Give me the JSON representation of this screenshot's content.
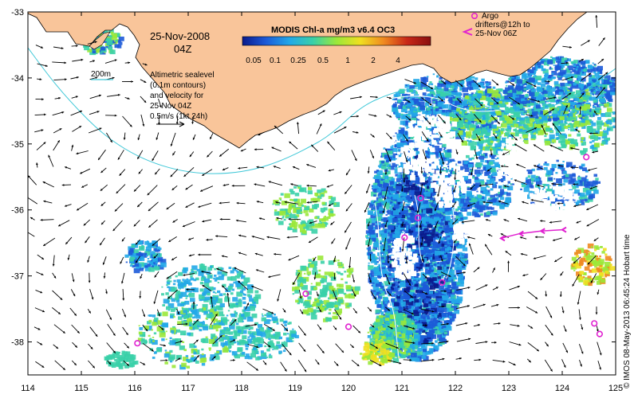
{
  "chart_data": {
    "type": "map",
    "title": "MODIS Chl-a mg/m3 v6.4 OC3",
    "date_label": "25-Nov-2008",
    "time_label": "04Z",
    "xlim": [
      114,
      125
    ],
    "ylim": [
      -38.5,
      -33
    ],
    "x_ticks": [
      "114",
      "115",
      "116",
      "117",
      "118",
      "119",
      "120",
      "121",
      "122",
      "123",
      "124",
      "125"
    ],
    "y_ticks": [
      "-33",
      "-34",
      "-35",
      "-36",
      "-37",
      "-38"
    ],
    "colorbar": {
      "labels": [
        "0.05",
        "0.1",
        "0.25",
        "0.5",
        "1",
        "2",
        "4"
      ],
      "colors": [
        "#0a1a8c",
        "#1c5ad8",
        "#22a8e8",
        "#3ad0a8",
        "#9ae83a",
        "#f0e020",
        "#f08a20",
        "#c82818",
        "#8a1010"
      ]
    },
    "isobath_label": "200m",
    "legend_lines": [
      "Altimetric sealevel",
      "(0.1m contours)",
      "and velocity for",
      "25-Nov 04Z",
      "0.5m/s (1kt 24h)"
    ],
    "argo_lines": [
      "Argo",
      "drifters@12h to",
      "25-Nov 06Z"
    ],
    "side_text": "© IMOS 08-May-2013 06:45:24 Hobart time",
    "argo_floats": [
      [
        116.05,
        -38.02
      ],
      [
        119.2,
        -37.27
      ],
      [
        120.0,
        -37.77
      ],
      [
        121.35,
        -35.82
      ],
      [
        121.3,
        -36.12
      ],
      [
        121.05,
        -36.42
      ],
      [
        121.75,
        -37.1
      ],
      [
        124.45,
        -35.2
      ],
      [
        124.6,
        -37.72
      ],
      [
        124.7,
        -37.88
      ],
      [
        123.35,
        -32.92
      ]
    ],
    "drifter_track": [
      [
        124.0,
        -36.3
      ],
      [
        123.6,
        -36.32
      ],
      [
        123.2,
        -36.36
      ],
      [
        122.85,
        -36.43
      ]
    ],
    "colors": {
      "land": "#f9c59a",
      "coast": "#000000",
      "isobath": "#40c8d8",
      "argo": "#e020d0",
      "contour": "#ffffff"
    }
  }
}
